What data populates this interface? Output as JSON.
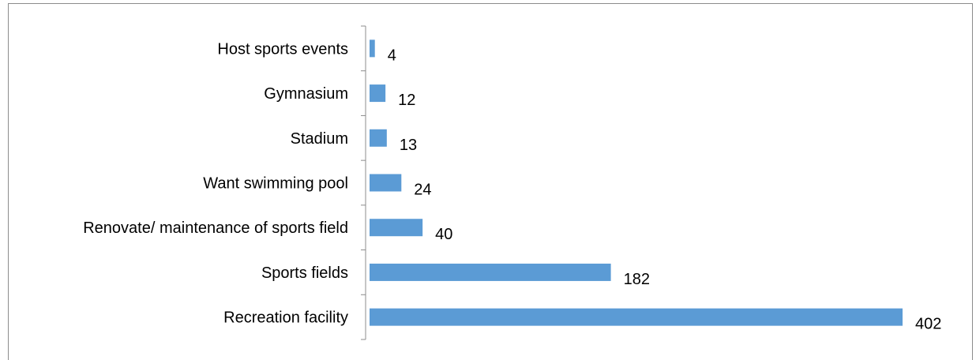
{
  "chart_data": {
    "type": "bar",
    "orientation": "horizontal",
    "categories": [
      "Host sports events",
      "Gymnasium",
      "Stadium",
      "Want swimming pool",
      "Renovate/ maintenance of sports field",
      "Sports fields",
      "Recreation facility"
    ],
    "values": [
      4,
      12,
      13,
      24,
      40,
      182,
      402
    ],
    "title": "",
    "xlabel": "",
    "ylabel": "",
    "xlim": [
      0,
      402
    ],
    "grid": false,
    "legend": "none",
    "bar_color": "#5b9bd5",
    "data_labels": true
  }
}
